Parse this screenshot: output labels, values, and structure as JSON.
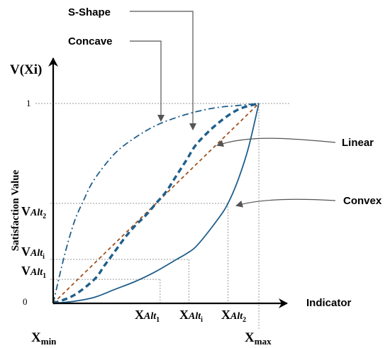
{
  "chart_data": {
    "type": "line",
    "title": "",
    "xlabel": "Indicator",
    "ylabel": "Satisfaction Value",
    "y_axis_title": "V(Xi)",
    "x_axis_ends": {
      "min": {
        "main": "X",
        "sub": "min"
      },
      "max": {
        "main": "X",
        "sub": "max"
      }
    },
    "y_ticks": [
      "0",
      "1"
    ],
    "xlim": [
      0,
      1
    ],
    "ylim": [
      0,
      1
    ],
    "grid": false,
    "series": [
      {
        "name": "Linear",
        "style": "dashed",
        "color": "#a0521d",
        "x": [
          0,
          0.25,
          0.5,
          0.75,
          1
        ],
        "y": [
          0,
          0.25,
          0.5,
          0.75,
          1
        ]
      },
      {
        "name": "Convex",
        "style": "solid",
        "color": "#1f5f8b",
        "x": [
          0,
          0.1,
          0.2,
          0.3,
          0.4,
          0.5,
          0.6,
          0.65,
          0.7,
          0.8,
          0.85,
          0.9,
          0.95,
          1
        ],
        "y": [
          0,
          0.01,
          0.03,
          0.07,
          0.11,
          0.16,
          0.22,
          0.25,
          0.29,
          0.42,
          0.5,
          0.62,
          0.78,
          1
        ]
      },
      {
        "name": "Concave",
        "style": "dash-dot",
        "color": "#1f5f8b",
        "x": [
          0,
          0.05,
          0.1,
          0.15,
          0.2,
          0.3,
          0.4,
          0.5,
          0.6,
          0.7,
          0.8,
          0.9,
          1
        ],
        "y": [
          0,
          0.22,
          0.4,
          0.52,
          0.62,
          0.75,
          0.83,
          0.89,
          0.93,
          0.96,
          0.98,
          0.99,
          1
        ]
      },
      {
        "name": "S-Shape",
        "style": "bold-dashed",
        "color": "#1f5f8b",
        "x": [
          0,
          0.1,
          0.2,
          0.25,
          0.3,
          0.35,
          0.4,
          0.45,
          0.5,
          0.55,
          0.6,
          0.65,
          0.7,
          0.8,
          0.9,
          1
        ],
        "y": [
          0,
          0.04,
          0.12,
          0.19,
          0.26,
          0.33,
          0.39,
          0.44,
          0.5,
          0.56,
          0.64,
          0.72,
          0.8,
          0.9,
          0.97,
          1
        ]
      }
    ],
    "markers": {
      "x": [
        {
          "main": "X",
          "sub": "Alt",
          "idx": "1",
          "value": 0.52
        },
        {
          "main": "X",
          "sub": "Alt",
          "idx": "i",
          "value": 0.66
        },
        {
          "main": "X",
          "sub": "Alt",
          "idx": "2",
          "value": 0.85
        }
      ],
      "y": [
        {
          "main": "V",
          "sub": "Alt",
          "idx": "2",
          "value": 0.5
        },
        {
          "main": "V",
          "sub": "Alt",
          "idx": "i",
          "value": 0.22
        },
        {
          "main": "V",
          "sub": "Alt",
          "idx": "1",
          "value": 0.12
        }
      ]
    },
    "annotations": [
      "S-Shape",
      "Concave",
      "Linear",
      "Convex"
    ]
  }
}
